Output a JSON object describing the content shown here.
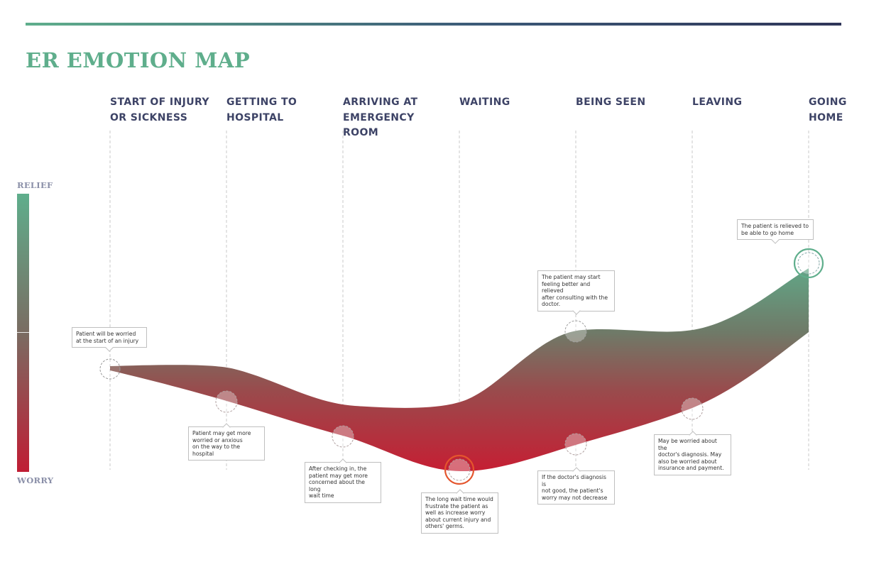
{
  "title": "ER EMOTION MAP",
  "legend": {
    "top": "RELIEF",
    "bottom": "WORRY"
  },
  "colors": {
    "relief": "#5fae8c",
    "worry": "#c01d34",
    "heading": "#3d4366",
    "title": "#5fae8c",
    "highlight": "#e4552d"
  },
  "stages": [
    {
      "line1": "START OF INJURY",
      "line2": "OR SICKNESS"
    },
    {
      "line1": "GETTING TO",
      "line2": "HOSPITAL"
    },
    {
      "line1": "ARRIVING AT",
      "line2": "EMERGENCY ROOM"
    },
    {
      "line1": "WAITING",
      "line2": ""
    },
    {
      "line1": "BEING SEEN",
      "line2": ""
    },
    {
      "line1": "LEAVING",
      "line2": ""
    },
    {
      "line1": "GOING",
      "line2": "HOME"
    }
  ],
  "notes": [
    {
      "lines": [
        "Patient will be worried",
        "at the start of an injury"
      ]
    },
    {
      "lines": [
        "Patient may get more",
        "worried or anxious",
        "on the way to the hospital"
      ]
    },
    {
      "lines": [
        "After checking in, the",
        "patient may get more",
        "concerned about the long",
        "wait time"
      ]
    },
    {
      "lines": [
        "The long wait time would",
        "frustrate the patient as",
        "well as increase worry",
        "about current injury and",
        "others' germs."
      ]
    },
    {
      "lines": [
        "The patient may start",
        "feeling better and relieved",
        "after consulting with the",
        "doctor."
      ]
    },
    {
      "lines": [
        "If the doctor's diagnosis is",
        "not good, the patient's",
        "worry may not decrease"
      ]
    },
    {
      "lines": [
        "May be worried about the",
        "doctor's diagnosis. May",
        "also be worried about",
        "insurance and payment."
      ]
    },
    {
      "lines": [
        "The patient is relieved to",
        "be able to go home"
      ]
    }
  ]
}
